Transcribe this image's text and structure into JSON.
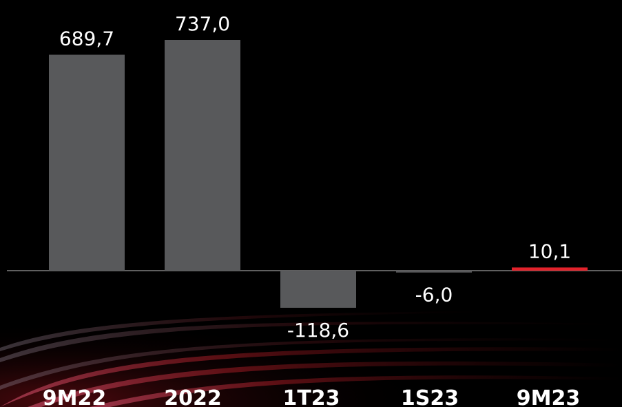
{
  "chart_data": {
    "type": "bar",
    "categories": [
      "9M22",
      "2022",
      "1T23",
      "1S23",
      "9M23"
    ],
    "values": [
      689.7,
      737.0,
      -118.6,
      -6.0,
      10.1
    ],
    "value_labels": [
      "689,7",
      "737,0",
      "-118,6",
      "-6,0",
      "10,1"
    ],
    "title": "",
    "xlabel": "",
    "ylabel": "",
    "ylim": [
      -130,
      800
    ],
    "grid": false,
    "legend": "none"
  },
  "colors": {
    "background": "#000000",
    "bar": "#58595b",
    "highlight_bar": "#e3222b",
    "baseline": "#bfbfbf",
    "text": "#ffffff",
    "streak": "#c0202a"
  },
  "highlight_index": 4
}
